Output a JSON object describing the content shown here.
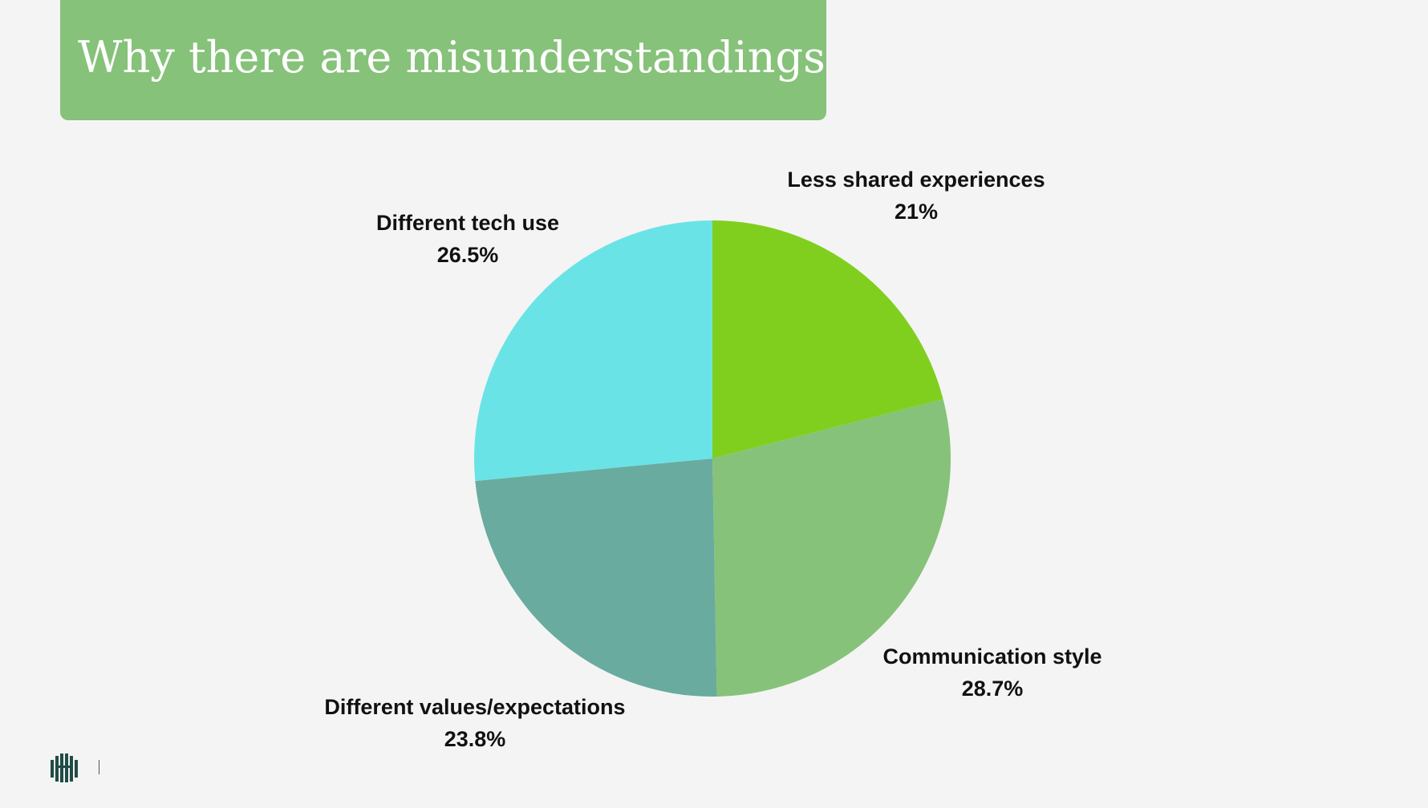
{
  "slide": {
    "title": "Why there are misunderstandings"
  },
  "chart_data": {
    "type": "pie",
    "title": "",
    "slices": [
      {
        "label": "Less shared experiences",
        "value": 21,
        "value_label": "21%",
        "color": "#80cf1f"
      },
      {
        "label": "Communication style",
        "value": 28.7,
        "value_label": "28.7%",
        "color": "#86c279"
      },
      {
        "label": "Different values/expectations",
        "value": 23.8,
        "value_label": "23.8%",
        "color": "#6aab9f"
      },
      {
        "label": "Different tech use",
        "value": 26.5,
        "value_label": "26.5%",
        "color": "#6ae3e6"
      }
    ],
    "start_angle": "12 o'clock",
    "direction": "clockwise"
  },
  "footer": {
    "logo_icon": "building-columns-logo-icon",
    "logo_color": "#1f4d45"
  }
}
